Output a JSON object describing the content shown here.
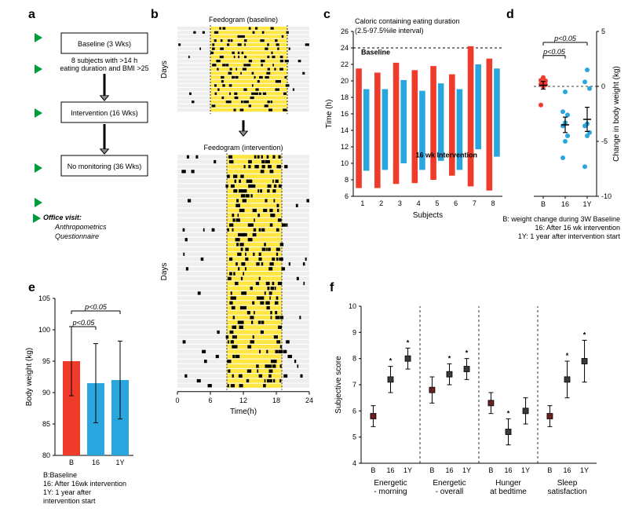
{
  "colors": {
    "baseline": "#ef3b2c",
    "intervention": "#2aa6de",
    "arrow_green": "#009e3a",
    "box_stroke": "#000",
    "feed_bg": "#e0e0e0",
    "feed_yellow": "#ffe640",
    "feed_mark": "#000",
    "grid": "#bdbdbd",
    "cap_dark_red": "#7f1d1d",
    "cap_dark_blue": "#4b4b4b",
    "black": "#000"
  },
  "labels": {
    "a": "a",
    "b": "b",
    "c": "c",
    "d": "d",
    "e": "e",
    "f": "f"
  },
  "panel_a": {
    "boxes": [
      "Baseline (3 Wks)",
      "Intervention (16 Wks)",
      "No monitoring (36 Wks)"
    ],
    "subhead_lines": [
      "8 subjects with >14 h",
      "eating duration and BMI >25"
    ],
    "arrow_note_lines": [
      "Office visit:",
      "Anthropometrics",
      "Questionnaire"
    ]
  },
  "panel_b": {
    "title_top": "Feedogram (baseline)",
    "title_bottom": "Feedogram (intervention)",
    "y_label": "Days",
    "x_label": "Time(h)",
    "x_ticks": [
      0,
      6,
      12,
      18,
      24
    ],
    "baseline_days": 21,
    "intervention_days": 48,
    "yellow_window_baseline": [
      6,
      20
    ],
    "yellow_window_intervention": [
      9,
      19
    ],
    "vlines_baseline": [
      6,
      20
    ],
    "vlines_intervention": [
      9,
      19
    ]
  },
  "panel_c": {
    "title_lines": [
      "Caloric containing eating duration",
      "(2.5-97.5%ile interval)"
    ],
    "y_label": "Time (h)",
    "x_label": "Subjects",
    "subjects": [
      1,
      2,
      3,
      4,
      5,
      6,
      7,
      8
    ],
    "baseline_label": "Baseline",
    "baseline_pairs": [
      [
        7,
        21.5
      ],
      [
        7,
        21.0
      ],
      [
        7.5,
        22.2
      ],
      [
        7.6,
        21.3
      ],
      [
        8,
        21.8
      ],
      [
        8.5,
        20.8
      ],
      [
        7.2,
        24.2
      ],
      [
        6.7,
        22.7
      ]
    ],
    "intervention_label": "16 wk Intervention",
    "intervention_pairs": [
      [
        9.1,
        19.0
      ],
      [
        9.2,
        19.0
      ],
      [
        10.0,
        20.1
      ],
      [
        9.2,
        18.8
      ],
      [
        10.3,
        19.7
      ],
      [
        9.2,
        19.0
      ],
      [
        11.7,
        22.0
      ],
      [
        10.8,
        21.5
      ]
    ],
    "y_ticks": [
      6,
      8,
      10,
      12,
      14,
      16,
      18,
      20,
      22,
      24,
      26
    ],
    "ref_line": 24
  },
  "panel_d": {
    "y_label": "Change in body weight (kg)",
    "x_ticks": [
      "B",
      "16",
      "1Y"
    ],
    "y_ticks": [
      -10,
      -5,
      0,
      5
    ],
    "sig_lines": [
      {
        "from": 0,
        "to": 2,
        "y": 4.0,
        "label": "p<0.05"
      },
      {
        "from": 0,
        "to": 1,
        "y": 2.8,
        "label": "p<0.05"
      }
    ],
    "points": {
      "B": [
        -1.7,
        0.0,
        0.15,
        0.2,
        0.25,
        0.5,
        0.55,
        0.8
      ],
      "16": [
        -6.5,
        -5.0,
        -4.5,
        -3.6,
        -3.3,
        -2.6,
        -2.3,
        -0.5
      ],
      "1Y": [
        -7.3,
        -4.5,
        -4.2,
        -3.6,
        -3.4,
        -0.2,
        0.4,
        1.5
      ]
    },
    "mean_err": {
      "B": [
        0.1,
        0.35
      ],
      "16": [
        -3.5,
        0.7
      ],
      "1Y": [
        -3.0,
        1.1
      ]
    },
    "legend_lines": [
      "B: weight change during 3W Baseline",
      "16: After 16 wk intervention",
      "1Y: 1 year after  intervention start"
    ]
  },
  "panel_e": {
    "y_label": "Body weight (kg)",
    "x_ticks": [
      "B",
      "16",
      "1Y"
    ],
    "y_ticks": [
      80,
      85,
      90,
      95,
      100,
      105
    ],
    "bars": [
      95,
      91.5,
      92
    ],
    "err": [
      5.5,
      6.3,
      6.2
    ],
    "sig_lines": [
      {
        "from": 0,
        "to": 2,
        "y": 103,
        "label": "p<0.05"
      },
      {
        "from": 0,
        "to": 1,
        "y": 100.5,
        "label": "p<0.05"
      }
    ],
    "legend_lines": [
      "B:Baseline",
      "16: After 16wk intervention",
      "1Y: 1 year after",
      "intervention start"
    ]
  },
  "panel_f": {
    "y_label": "Subjective score",
    "y_ticks": [
      4,
      5,
      6,
      7,
      8,
      9,
      10
    ],
    "categories": [
      "Energetic\n- morning",
      "Energetic\n- overall",
      "Hunger\nat bedtime",
      "Sleep\nsatisfaction"
    ],
    "sub_ticks": [
      "B",
      "16",
      "1Y"
    ],
    "data": [
      {
        "means": [
          5.8,
          7.2,
          8.0
        ],
        "err": [
          0.4,
          0.5,
          0.4
        ],
        "stars": [
          false,
          true,
          true
        ]
      },
      {
        "means": [
          6.8,
          7.4,
          7.6
        ],
        "err": [
          0.5,
          0.4,
          0.4
        ],
        "stars": [
          false,
          true,
          true
        ]
      },
      {
        "means": [
          6.3,
          5.2,
          6.0
        ],
        "err": [
          0.4,
          0.5,
          0.5
        ],
        "stars": [
          false,
          true,
          false
        ]
      },
      {
        "means": [
          5.8,
          7.2,
          7.9
        ],
        "err": [
          0.4,
          0.7,
          0.8
        ],
        "stars": [
          false,
          true,
          true
        ]
      }
    ]
  }
}
